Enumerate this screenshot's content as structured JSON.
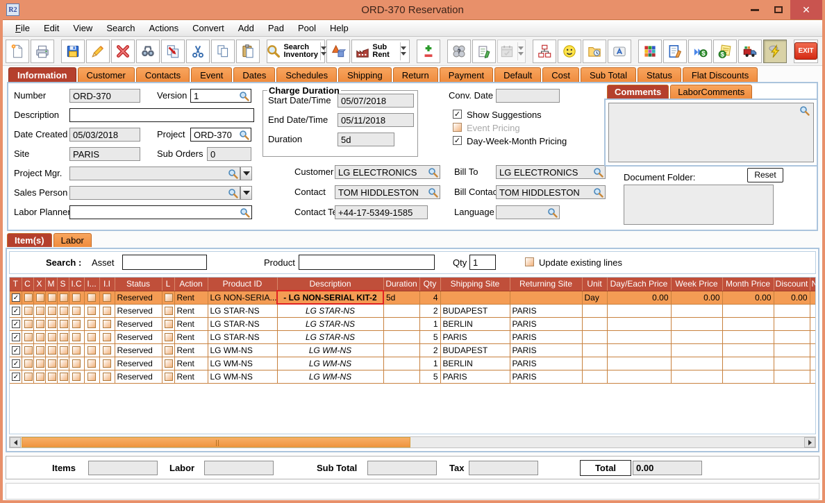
{
  "window": {
    "title": "ORD-370 Reservation",
    "app_badge": "R2",
    "controls": {
      "minimize": "minimize",
      "maximize": "maximize",
      "close": "✕"
    }
  },
  "menu": {
    "items": [
      "File",
      "Edit",
      "View",
      "Search",
      "Actions",
      "Convert",
      "Add",
      "Pad",
      "Pool",
      "Help"
    ]
  },
  "toolbar": {
    "buttons": [
      {
        "icon": "new-document"
      },
      {
        "icon": "print"
      },
      {
        "icon": "save",
        "group": true
      },
      {
        "icon": "edit-pencil"
      },
      {
        "icon": "delete-cross"
      },
      {
        "icon": "binoculars"
      },
      {
        "icon": "transfer-document"
      },
      {
        "icon": "cut-scissors"
      },
      {
        "icon": "copy-pages"
      },
      {
        "icon": "paste-clipboard"
      },
      {
        "icon": "search-inventory",
        "label": "Search\nInventory",
        "dropdown": true,
        "group": true
      },
      {
        "icon": "3d-shapes"
      },
      {
        "icon": "sub-rent",
        "label": "Sub Rent",
        "dropdown": true
      },
      {
        "icon": "plus-minus",
        "group": true
      },
      {
        "icon": "spheres-query",
        "group": true
      },
      {
        "icon": "notepad-pencil"
      },
      {
        "icon": "calendar",
        "dropdown": true,
        "disabled": true
      },
      {
        "icon": "org-chart",
        "group": true
      },
      {
        "icon": "smiley-face"
      },
      {
        "icon": "folder-clock"
      },
      {
        "icon": "keyboard-key"
      },
      {
        "icon": "color-blocks",
        "group": true
      },
      {
        "icon": "document-pencil"
      },
      {
        "icon": "dollar-forward"
      },
      {
        "icon": "dollar-notes"
      },
      {
        "icon": "delivery-truck"
      },
      {
        "icon": "lightning-bolt",
        "pressed": true,
        "spacer_before": true
      },
      {
        "icon": "exit",
        "label": "EXIT",
        "exit": true,
        "group": true
      }
    ]
  },
  "main_tabs": [
    {
      "label": "Information",
      "active": true
    },
    {
      "label": "Customer"
    },
    {
      "label": "Contacts"
    },
    {
      "label": "Event"
    },
    {
      "label": "Dates"
    },
    {
      "label": "Schedules"
    },
    {
      "label": "Shipping"
    },
    {
      "label": "Return"
    },
    {
      "label": "Payment"
    },
    {
      "label": "Default"
    },
    {
      "label": "Cost"
    },
    {
      "label": "Sub Total"
    },
    {
      "label": "Status"
    },
    {
      "label": "Flat Discounts"
    }
  ],
  "info": {
    "number_label": "Number",
    "number_value": "ORD-370",
    "version_label": "Version",
    "version_value": "1",
    "description_label": "Description",
    "description_value": "",
    "date_created_label": "Date Created",
    "date_created_value": "05/03/2018",
    "project_label": "Project",
    "project_value": "ORD-370",
    "site_label": "Site",
    "site_value": "PARIS",
    "sub_orders_label": "Sub Orders",
    "sub_orders_value": "0",
    "project_mgr_label": "Project Mgr.",
    "project_mgr_value": "",
    "sales_person_label": "Sales Person",
    "sales_person_value": "",
    "labor_planner_label": "Labor Planner",
    "labor_planner_value": "",
    "charge_duration_legend": "Charge Duration",
    "start_label": "Start Date/Time",
    "start_value": "05/07/2018",
    "end_label": "End Date/Time",
    "end_value": "05/11/2018",
    "duration_label": "Duration",
    "duration_value": "5d",
    "conv_date_label": "Conv. Date",
    "conv_date_value": "",
    "show_suggestions_label": "Show Suggestions",
    "event_pricing_label": "Event Pricing",
    "dwm_pricing_label": "Day-Week-Month Pricing",
    "customer_label": "Customer",
    "customer_value": "LG ELECTRONICS",
    "bill_to_label": "Bill To",
    "bill_to_value": "LG ELECTRONICS",
    "contact_label": "Contact",
    "contact_value": "TOM HIDDLESTON",
    "bill_contact_label": "Bill Contact",
    "bill_contact_value": "TOM HIDDLESTON",
    "contact_tel_label": "Contact Tel #",
    "contact_tel_value": "+44-17-5349-1585",
    "language_label": "Language",
    "language_value": "",
    "comments_tabs": [
      {
        "label": "Comments",
        "active": true
      },
      {
        "label": "LaborComments"
      }
    ],
    "comments_value": "",
    "document_folder_label": "Document Folder:",
    "reset_button": "Reset",
    "document_folder_value": ""
  },
  "items_section": {
    "tabs": [
      {
        "label": "Item(s)",
        "active": true
      },
      {
        "label": "Labor"
      }
    ],
    "search_label": "Search :",
    "asset_label": "Asset",
    "asset_value": "",
    "product_label": "Product",
    "product_value": "",
    "qty_label": "Qty",
    "qty_value": "1",
    "update_lines_label": "Update existing lines"
  },
  "items_table": {
    "columns": [
      "T",
      "C",
      "X",
      "M",
      "S",
      "I.C",
      "I...",
      "I.I",
      "Status",
      "L",
      "Action",
      "Product ID",
      "Description",
      "Duration",
      "Qty",
      "Shipping Site",
      "Returning Site",
      "Unit",
      "Day/Each Price",
      "Week Price",
      "Month Price",
      "Discount",
      "Ne..."
    ],
    "rows": [
      {
        "t_checked": true,
        "status": "Reserved",
        "action": "Rent",
        "product_id": "LG NON-SERIA...",
        "description": "-  LG NON-SERIAL KIT-2",
        "description_style": "selected",
        "duration": "5d",
        "qty": "4",
        "shipping_site": "",
        "returning_site": "",
        "unit": "Day",
        "day_each_price": "0.00",
        "week_price": "0.00",
        "month_price": "0.00",
        "discount": "0.00",
        "net": "",
        "selected": true
      },
      {
        "t_checked": true,
        "status": "Reserved",
        "action": "Rent",
        "product_id": "LG STAR-NS",
        "description": "LG STAR-NS",
        "description_style": "italic",
        "duration": "",
        "qty": "2",
        "shipping_site": "BUDAPEST",
        "returning_site": "PARIS",
        "unit": "",
        "day_each_price": "",
        "week_price": "",
        "month_price": "",
        "discount": "",
        "net": "",
        "selected": false
      },
      {
        "t_checked": true,
        "status": "Reserved",
        "action": "Rent",
        "product_id": "LG STAR-NS",
        "description": "LG STAR-NS",
        "description_style": "italic",
        "duration": "",
        "qty": "1",
        "shipping_site": "BERLIN",
        "returning_site": "PARIS",
        "unit": "",
        "day_each_price": "",
        "week_price": "",
        "month_price": "",
        "discount": "",
        "net": "",
        "selected": false
      },
      {
        "t_checked": true,
        "status": "Reserved",
        "action": "Rent",
        "product_id": "LG STAR-NS",
        "description": "LG STAR-NS",
        "description_style": "italic",
        "duration": "",
        "qty": "5",
        "shipping_site": "PARIS",
        "returning_site": "PARIS",
        "unit": "",
        "day_each_price": "",
        "week_price": "",
        "month_price": "",
        "discount": "",
        "net": "",
        "selected": false
      },
      {
        "t_checked": true,
        "status": "Reserved",
        "action": "Rent",
        "product_id": "LG WM-NS",
        "description": "LG WM-NS",
        "description_style": "italic",
        "duration": "",
        "qty": "2",
        "shipping_site": "BUDAPEST",
        "returning_site": "PARIS",
        "unit": "",
        "day_each_price": "",
        "week_price": "",
        "month_price": "",
        "discount": "",
        "net": "",
        "selected": false
      },
      {
        "t_checked": true,
        "status": "Reserved",
        "action": "Rent",
        "product_id": "LG WM-NS",
        "description": "LG WM-NS",
        "description_style": "italic",
        "duration": "",
        "qty": "1",
        "shipping_site": "BERLIN",
        "returning_site": "PARIS",
        "unit": "",
        "day_each_price": "",
        "week_price": "",
        "month_price": "",
        "discount": "",
        "net": "",
        "selected": false
      },
      {
        "t_checked": true,
        "status": "Reserved",
        "action": "Rent",
        "product_id": "LG WM-NS",
        "description": "LG WM-NS",
        "description_style": "italic",
        "duration": "",
        "qty": "5",
        "shipping_site": "PARIS",
        "returning_site": "PARIS",
        "unit": "",
        "day_each_price": "",
        "week_price": "",
        "month_price": "",
        "discount": "",
        "net": "",
        "selected": false
      }
    ]
  },
  "summary": {
    "items_label": "Items",
    "items_value": "",
    "labor_label": "Labor",
    "labor_value": "",
    "sub_total_label": "Sub Total",
    "sub_total_value": "",
    "tax_label": "Tax",
    "tax_value": "",
    "total_label": "Total",
    "total_value": "0.00"
  },
  "colors": {
    "titlebar_orange": "#e8906a",
    "close_red": "#c9544f",
    "tab_orange": "#f2944d",
    "active_tab_red": "#b5402d",
    "grid_header_red": "#c04f3a",
    "selected_row_orange": "#f49c54",
    "scroll_thumb_orange": "#f2a158"
  }
}
